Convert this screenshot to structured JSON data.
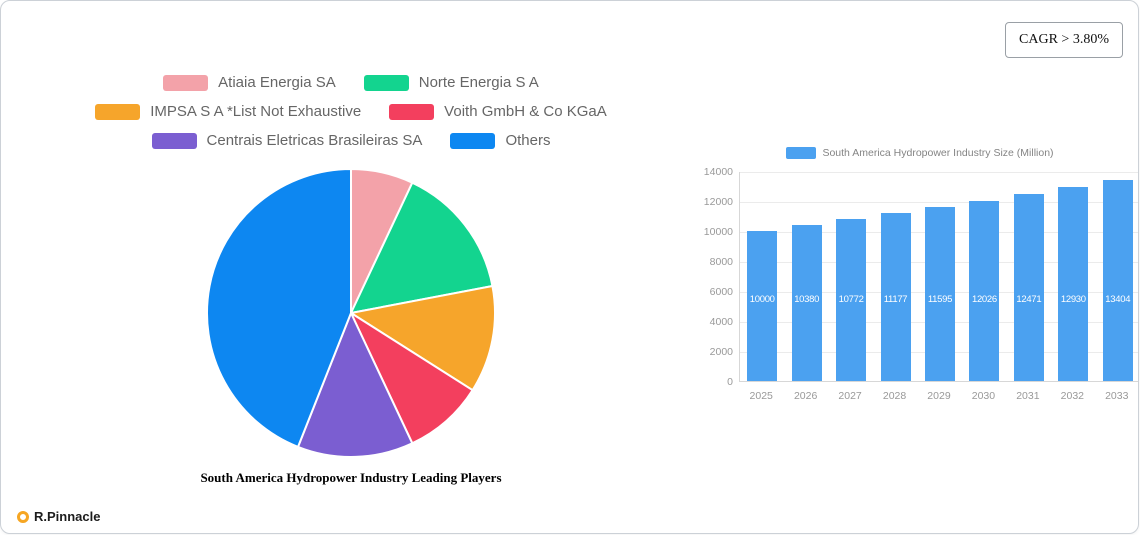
{
  "page": {
    "cagr_badge": "CAGR > 3.80%",
    "brand": "R.Pinnacle"
  },
  "chart_data": [
    {
      "type": "pie",
      "title": "South America Hydropower Industry Leading Players",
      "legend_position": "top",
      "slices": [
        {
          "label": "Atiaia Energia SA",
          "value": 7,
          "color": "#f3a2a9"
        },
        {
          "label": "Norte Energia S A",
          "value": 15,
          "color": "#13d48f"
        },
        {
          "label": "IMPSA S A *List Not Exhaustive",
          "value": 12,
          "color": "#f6a52b"
        },
        {
          "label": "Voith GmbH & Co KGaA",
          "value": 9,
          "color": "#f33f5e"
        },
        {
          "label": "Centrais Eletricas Brasileiras SA",
          "value": 13,
          "color": "#7b5ed1"
        },
        {
          "label": "Others",
          "value": 44,
          "color": "#0d87f1"
        }
      ]
    },
    {
      "type": "bar",
      "legend_label": "South America Hydropower Industry Size (Million)",
      "categories": [
        "2025",
        "2026",
        "2027",
        "2028",
        "2029",
        "2030",
        "2031",
        "2032",
        "2033"
      ],
      "values": [
        10000,
        10380,
        10772,
        11177,
        11595,
        12026,
        12471,
        12930,
        13404
      ],
      "bar_color": "#4ba1f0",
      "xlabel": "",
      "ylabel": "",
      "ylim": [
        0,
        14000
      ],
      "ytick_step": 2000,
      "grid": true,
      "legend_position": "top"
    }
  ]
}
